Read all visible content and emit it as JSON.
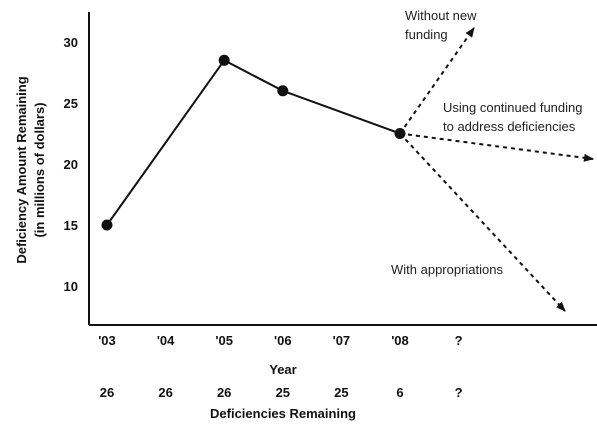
{
  "chart_data": {
    "type": "line",
    "ylabel_line1": "Deficiency Amount Remaining",
    "ylabel_line2": "(in millions of dollars)",
    "xlabel": "Year",
    "ylim": [
      7,
      32
    ],
    "y_ticks": [
      10,
      15,
      20,
      25,
      30
    ],
    "categories": [
      "'03",
      "'04",
      "'05",
      "'06",
      "'07",
      "'08",
      "?"
    ],
    "series": [
      {
        "points": [
          {
            "x": "'03",
            "y": 15
          },
          {
            "x": "'05",
            "y": 28.5
          },
          {
            "x": "'06",
            "y": 26
          },
          {
            "x": "'08",
            "y": 22.5
          }
        ]
      }
    ],
    "projections": [
      {
        "label_lines": [
          "Without new",
          "funding"
        ],
        "style": "dashed",
        "direction": "up"
      },
      {
        "label_lines": [
          "Using continued funding",
          "to address deficiencies"
        ],
        "style": "dashed",
        "direction": "flat"
      },
      {
        "label_lines": [
          "With appropriations"
        ],
        "style": "dashed",
        "direction": "down"
      }
    ],
    "deficiencies_remaining": {
      "label": "Deficiencies Remaining",
      "values": [
        "26",
        "26",
        "26",
        "25",
        "25",
        "6",
        "?"
      ]
    }
  }
}
